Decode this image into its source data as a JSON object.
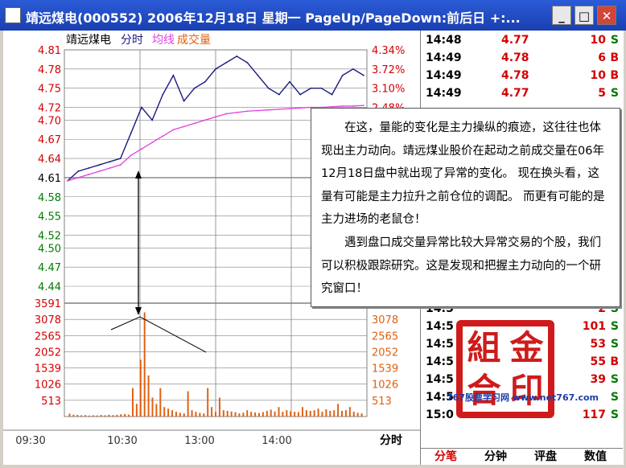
{
  "window": {
    "title": "靖远煤电(000552) 2006年12月18日 星期一 PageUp/PageDown:前后日 +:...",
    "min_label": "_",
    "max_label": "□",
    "close_label": "✕"
  },
  "chart": {
    "stock_name": "靖远煤电",
    "mode_label": "分时",
    "avg_label": "均线",
    "volume_label": "成交量",
    "price_ticks": [
      {
        "value": "4.81",
        "pct": "4.34%"
      },
      {
        "value": "4.78",
        "pct": "3.72%"
      },
      {
        "value": "4.75",
        "pct": "3.10%"
      },
      {
        "value": "4.72",
        "pct": "2.48%"
      },
      {
        "value": "4.70",
        "pct": ""
      },
      {
        "value": "4.67",
        "pct": ""
      },
      {
        "value": "4.64",
        "pct": ""
      },
      {
        "value": "4.61",
        "pct": ""
      },
      {
        "value": "4.58",
        "pct": ""
      },
      {
        "value": "4.55",
        "pct": ""
      },
      {
        "value": "4.52",
        "pct": ""
      },
      {
        "value": "4.50",
        "pct": ""
      },
      {
        "value": "4.47",
        "pct": ""
      },
      {
        "value": "4.44",
        "pct": ""
      }
    ],
    "volume_ticks": [
      "3591",
      "3078",
      "2565",
      "2052",
      "1539",
      "1026",
      "513"
    ],
    "time_labels": [
      "09:30",
      "10:30",
      "13:00",
      "14:00"
    ],
    "corner_label": "分时",
    "colors": {
      "up": "#d40000",
      "down": "#007a00",
      "price_line": "#1a1a80",
      "avg_line": "#e040e0",
      "volume": "#e06010",
      "grid": "#808080"
    }
  },
  "chart_data": [
    {
      "type": "line",
      "title": "",
      "xlabel": "",
      "ylabel": "",
      "x": [
        "09:30",
        "09:40",
        "09:50",
        "10:00",
        "10:10",
        "10:20",
        "10:30",
        "10:35",
        "10:40",
        "10:45",
        "10:50",
        "10:55",
        "11:00",
        "11:10",
        "11:20",
        "11:30",
        "13:00",
        "13:10",
        "13:20",
        "13:30",
        "13:40",
        "13:50",
        "14:00",
        "14:10",
        "14:20",
        "14:30",
        "14:40",
        "14:50",
        "15:00"
      ],
      "series": [
        {
          "name": "",
          "values": [
            4.605,
            4.62,
            4.625,
            4.63,
            4.635,
            4.64,
            4.68,
            4.72,
            4.7,
            4.74,
            4.77,
            4.73,
            4.75,
            4.76,
            4.78,
            4.79,
            4.8,
            4.79,
            4.77,
            4.75,
            4.74,
            4.76,
            4.74,
            4.75,
            4.75,
            4.74,
            4.77,
            4.78,
            4.77
          ]
        },
        {
          "name": "均线",
          "values": [
            4.605,
            4.61,
            4.615,
            4.62,
            4.625,
            4.63,
            4.645,
            4.655,
            4.665,
            4.675,
            4.685,
            4.69,
            4.695,
            4.7,
            4.705,
            4.71,
            4.712,
            4.714,
            4.715,
            4.716,
            4.717,
            4.718,
            4.719,
            4.72,
            4.72,
            4.721,
            4.722,
            4.722,
            4.723
          ]
        }
      ],
      "ylim": [
        4.44,
        4.81
      ],
      "y_ticks": [
        4.81,
        4.78,
        4.75,
        4.72,
        4.7,
        4.67,
        4.64,
        4.61,
        4.58,
        4.55,
        4.52,
        4.5,
        4.47,
        4.44
      ],
      "grid": true
    },
    {
      "type": "bar",
      "title": "",
      "xlabel": "",
      "ylabel": "",
      "series": [
        {
          "name": "成交量",
          "values": [
            90,
            60,
            50,
            40,
            45,
            30,
            40,
            35,
            50,
            40,
            60,
            45,
            55,
            70,
            80,
            60,
            900,
            400,
            1800,
            3300,
            1300,
            600,
            400,
            900,
            300,
            250,
            200,
            150,
            120,
            100,
            800,
            200,
            150,
            120,
            100,
            900,
            300,
            150,
            600,
            200,
            180,
            160,
            140,
            100,
            120,
            200,
            150,
            130,
            110,
            140,
            180,
            220,
            160,
            300,
            150,
            200,
            170,
            150,
            140,
            300,
            200,
            180,
            200,
            250,
            150,
            230,
            180,
            200,
            400,
            180,
            200,
            300,
            150,
            120,
            100
          ]
        }
      ],
      "ylim": [
        0,
        3591
      ],
      "y_ticks": [
        3591,
        3078,
        2565,
        2052,
        1539,
        1026,
        513
      ]
    }
  ],
  "ticks": [
    {
      "time": "14:48",
      "price": "4.77",
      "vol": "10",
      "bs": "S"
    },
    {
      "time": "14:49",
      "price": "4.78",
      "vol": "6",
      "bs": "B"
    },
    {
      "time": "14:49",
      "price": "4.78",
      "vol": "10",
      "bs": "B"
    },
    {
      "time": "14:49",
      "price": "4.77",
      "vol": "5",
      "bs": "S"
    },
    {
      "time": "14:5",
      "price": "",
      "vol": "2",
      "bs": "S"
    },
    {
      "time": "14:5",
      "price": "",
      "vol": "101",
      "bs": "S"
    },
    {
      "time": "14:5",
      "price": "",
      "vol": "53",
      "bs": "S"
    },
    {
      "time": "14:5",
      "price": "",
      "vol": "55",
      "bs": "B"
    },
    {
      "time": "14:5",
      "price": "",
      "vol": "39",
      "bs": "S"
    },
    {
      "time": "14:5",
      "price": "",
      "vol": "",
      "bs": "S"
    },
    {
      "time": "15:0",
      "price": "",
      "vol": "117",
      "bs": "S"
    }
  ],
  "tabs": [
    "分笔",
    "分钟",
    "评盘",
    "数值"
  ],
  "popup": {
    "p1": "在这，量能的变化是主力操纵的痕迹，这往往也体现出主力动向。靖远煤业股价在起动之前成交量在06年12月18日盘中就出现了异常的变化。 现在换头看，这量有可能是主力拉升之前仓位的调配。 而更有可能的是主力进场的老鼠仓！",
    "p2": "遇到盘口成交量异常比较大异常交易的个股，我们可以积极跟踪研究。这是发现和把握主力动向的一个研究窗口！"
  },
  "stamp": {
    "chars": [
      "組",
      "金",
      "合",
      "印"
    ]
  },
  "watermark": "767股票学习网 www.net767.com"
}
